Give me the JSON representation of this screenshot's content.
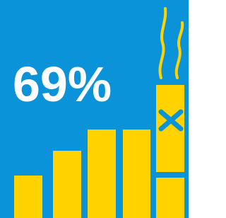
{
  "headline": "69%"
}
